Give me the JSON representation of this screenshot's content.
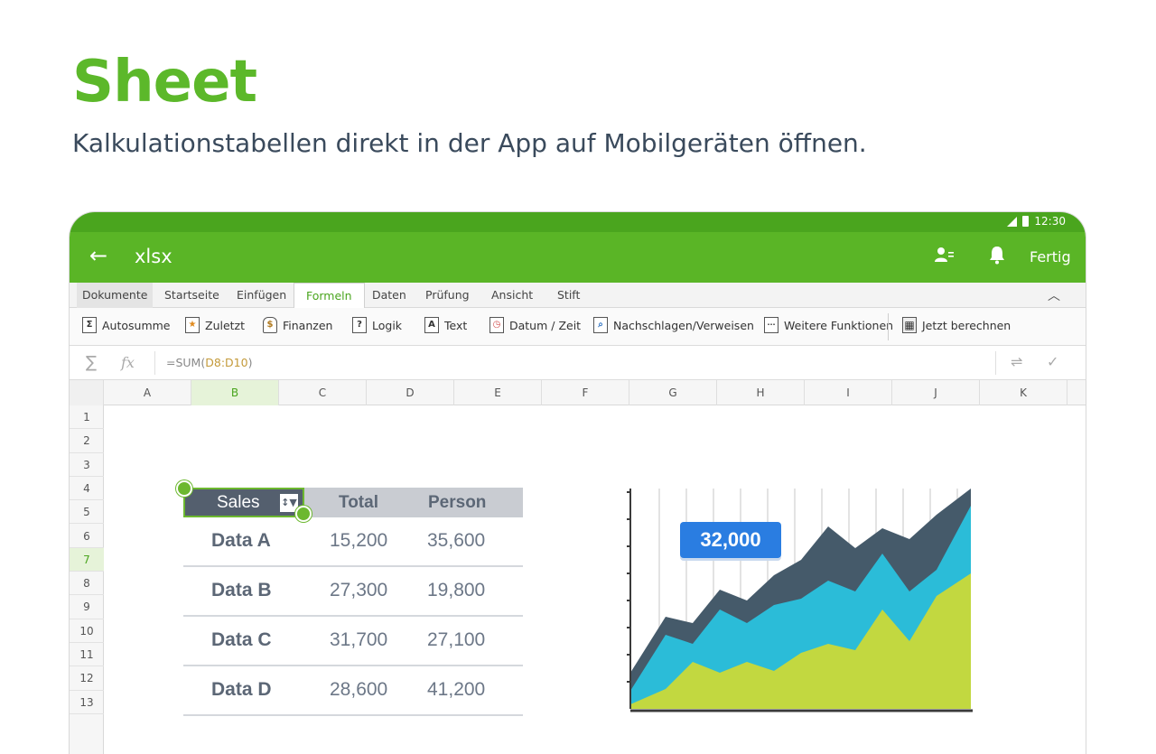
{
  "promo": {
    "title": "Sheet",
    "subtitle": "Kalkulationstabellen direkt in der App auf Mobilgeräten öffnen."
  },
  "statusbar": {
    "time": "12:30"
  },
  "appbar": {
    "title": "xlsx",
    "done_label": "Fertig"
  },
  "tabs": [
    {
      "label": "Dokumente"
    },
    {
      "label": "Startseite"
    },
    {
      "label": "Einfügen"
    },
    {
      "label": "Formeln"
    },
    {
      "label": "Daten"
    },
    {
      "label": "Prüfung"
    },
    {
      "label": "Ansicht"
    },
    {
      "label": "Stift"
    }
  ],
  "active_tab": "Formeln",
  "ribbon": [
    {
      "label": "Autosumme",
      "icon": "sigma-icon",
      "glyph": "Σ"
    },
    {
      "label": "Zuletzt",
      "icon": "star-icon",
      "glyph": "★"
    },
    {
      "label": "Finanzen",
      "icon": "money-bag-icon",
      "glyph": "$"
    },
    {
      "label": "Logik",
      "icon": "question-icon",
      "glyph": "?"
    },
    {
      "label": "Text",
      "icon": "text-icon",
      "glyph": "A"
    },
    {
      "label": "Datum / Zeit",
      "icon": "clock-icon",
      "glyph": "◷"
    },
    {
      "label": "Nachschlagen/Verweisen",
      "icon": "lookup-icon",
      "glyph": "⌕"
    },
    {
      "label": "Weitere Funktionen",
      "icon": "more-icon",
      "glyph": "···"
    },
    {
      "label": "Jetzt berechnen",
      "icon": "calculator-icon",
      "glyph": "▦"
    }
  ],
  "formula_bar": {
    "prefix": "=SUM(",
    "range": "D8:D10",
    "suffix": ")"
  },
  "columns": [
    "A",
    "B",
    "C",
    "D",
    "E",
    "F",
    "G",
    "H",
    "I",
    "J",
    "K"
  ],
  "selected_column": "B",
  "rows": [
    "1",
    "2",
    "3",
    "4",
    "5",
    "6",
    "7",
    "8",
    "9",
    "10",
    "11",
    "12",
    "13"
  ],
  "selected_row": "7",
  "table": {
    "headers": [
      "Sales",
      "Total",
      "Person"
    ],
    "rows": [
      {
        "label": "Data A",
        "total": "15,200",
        "person": "35,600"
      },
      {
        "label": "Data B",
        "total": "27,300",
        "person": "19,800"
      },
      {
        "label": "Data C",
        "total": "31,700",
        "person": "27,100"
      },
      {
        "label": "Data D",
        "total": "28,600",
        "person": "41,200"
      }
    ]
  },
  "chart_badge": "32,000",
  "colors": {
    "brand_green": "#5ab526",
    "series_dark": "#455a6a",
    "series_cyan": "#2bbcd8",
    "series_lime": "#c2d840",
    "badge_blue": "#2a7de1"
  }
}
